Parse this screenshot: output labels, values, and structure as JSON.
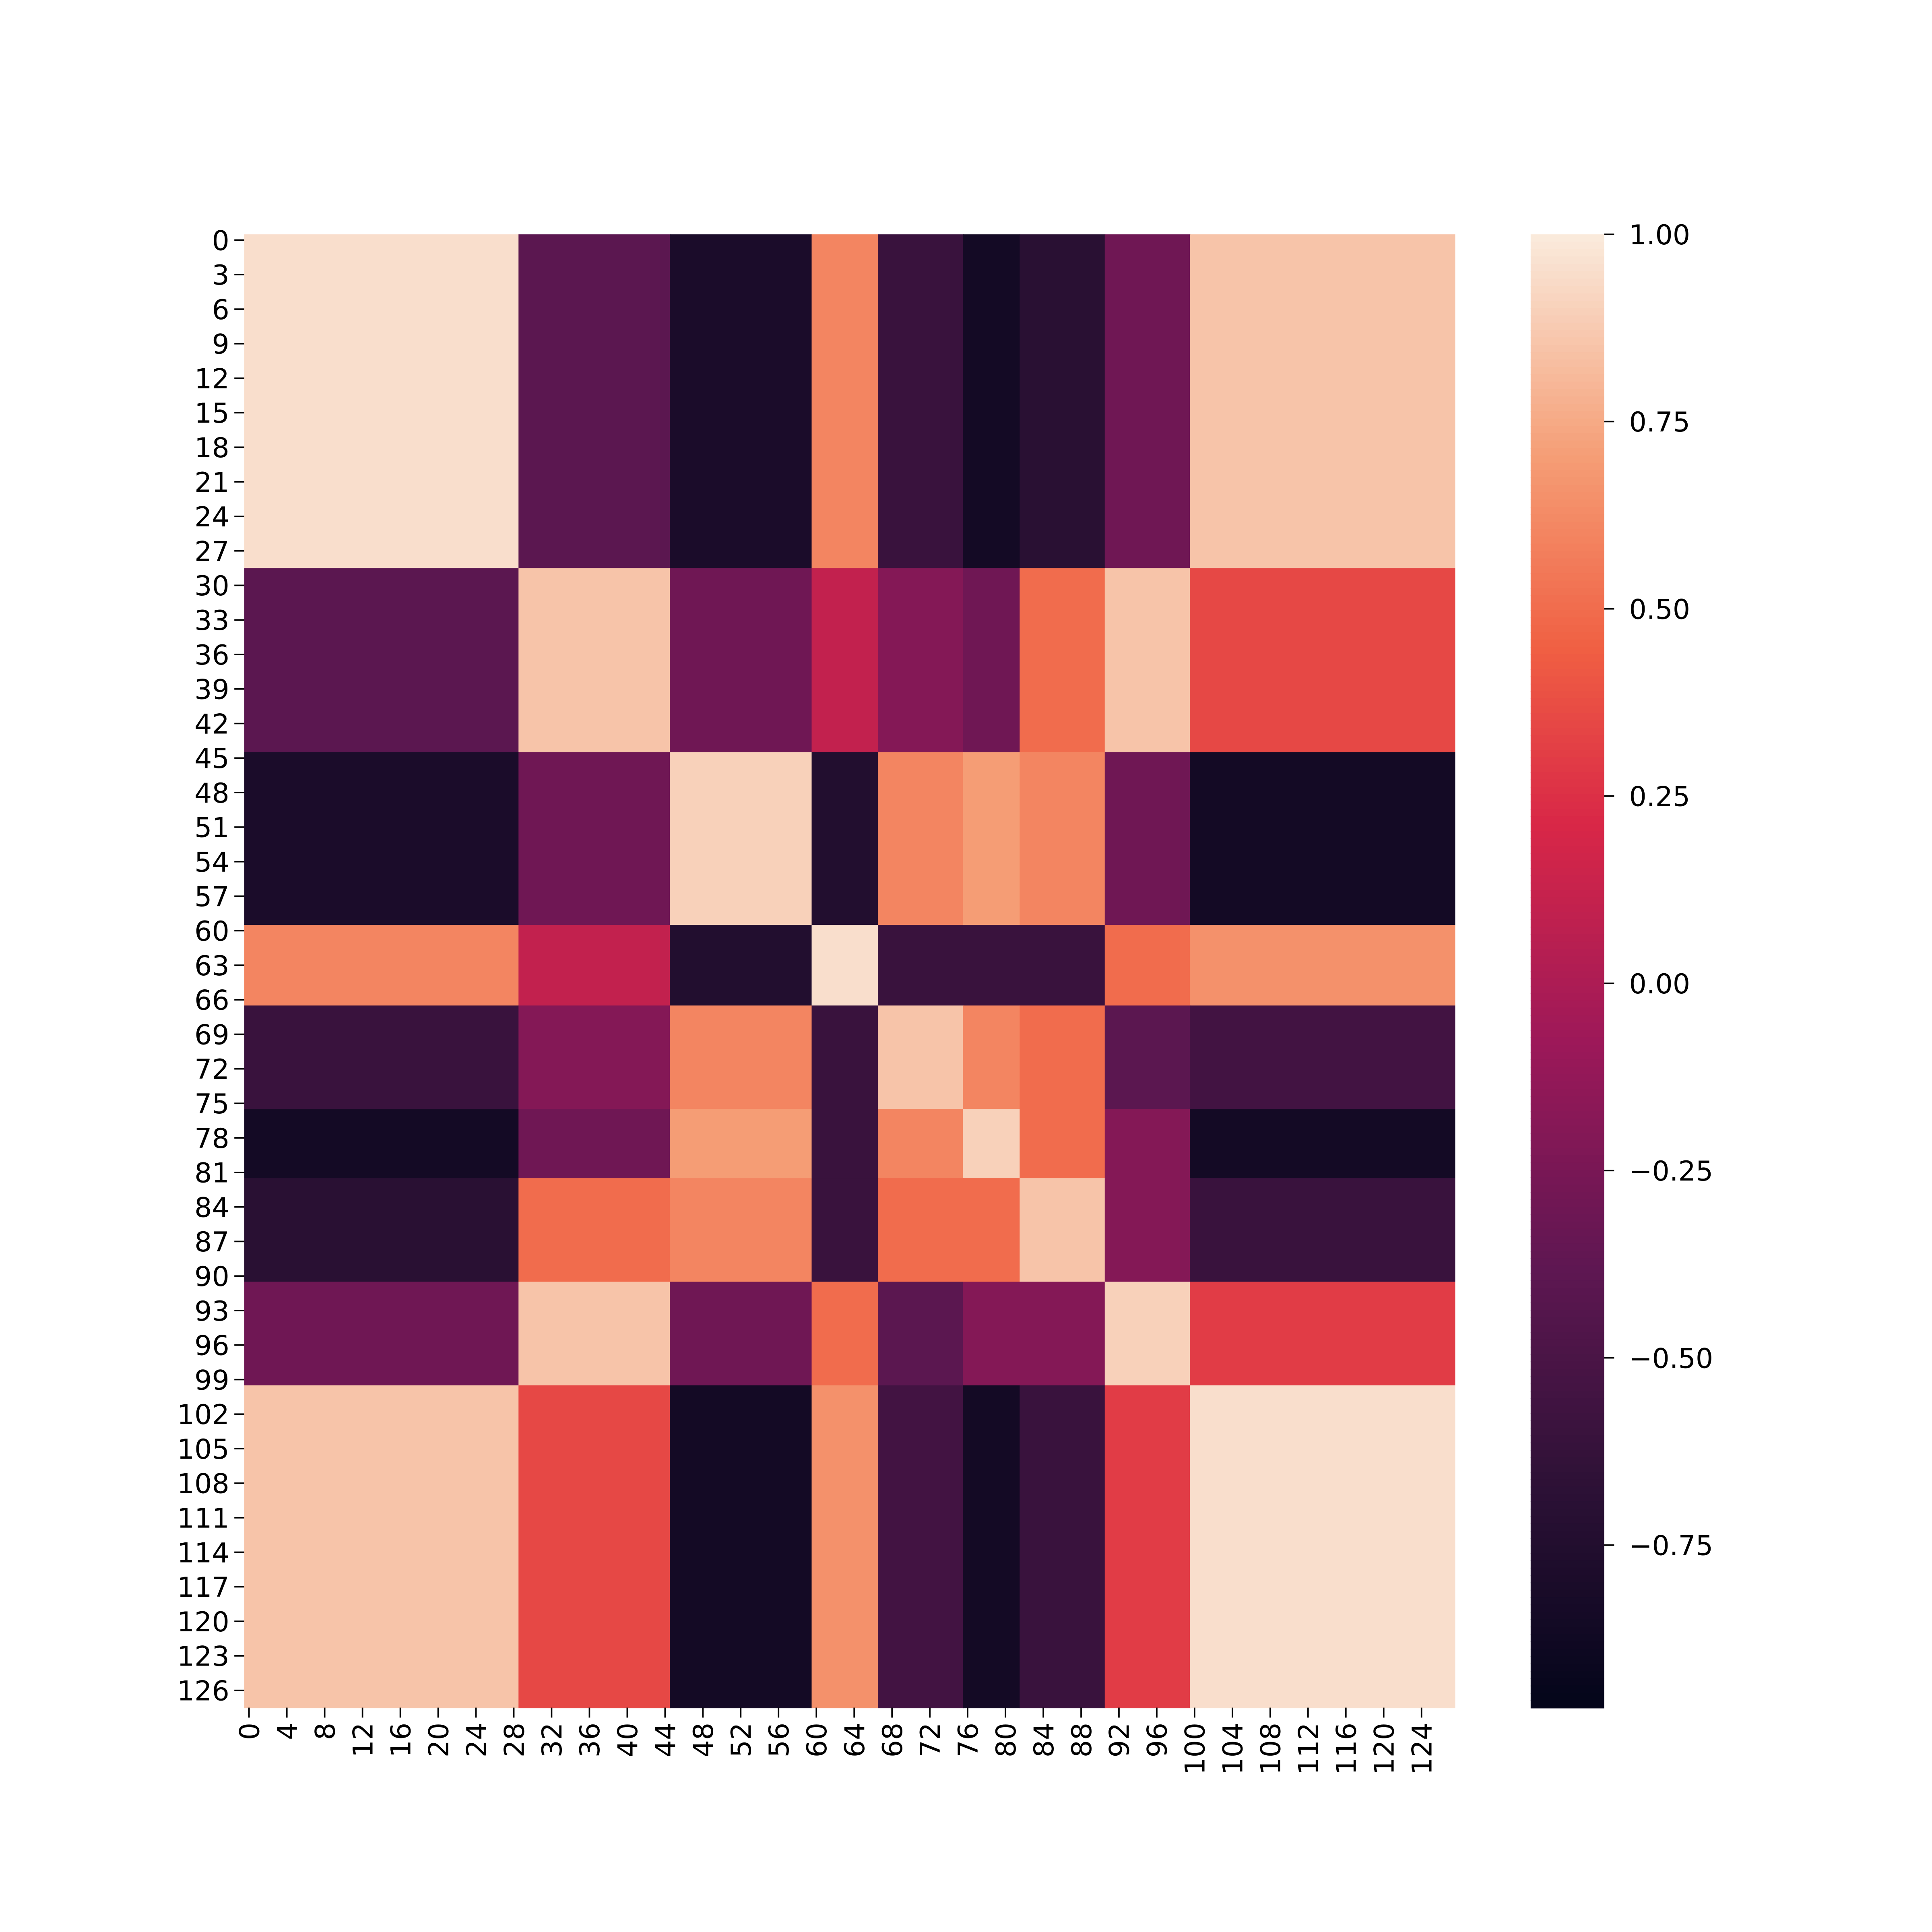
{
  "chart_data": {
    "type": "heatmap",
    "xlim": [
      0,
      128
    ],
    "ylim": [
      0,
      128
    ],
    "xticks": [
      0,
      4,
      8,
      12,
      16,
      20,
      24,
      28,
      32,
      36,
      40,
      44,
      48,
      52,
      56,
      60,
      64,
      68,
      72,
      76,
      80,
      84,
      88,
      92,
      96,
      100,
      104,
      108,
      112,
      116,
      120,
      124
    ],
    "yticks": [
      0,
      3,
      6,
      9,
      12,
      15,
      18,
      21,
      24,
      27,
      30,
      33,
      36,
      39,
      42,
      45,
      48,
      51,
      54,
      57,
      60,
      63,
      66,
      69,
      72,
      75,
      78,
      81,
      84,
      87,
      90,
      93,
      96,
      99,
      102,
      105,
      108,
      111,
      114,
      117,
      120,
      123,
      126
    ],
    "edges": [
      0,
      29,
      45,
      60,
      67,
      76,
      82,
      91,
      100,
      128
    ],
    "values": [
      [
        0.95,
        -0.4,
        -0.8,
        0.6,
        -0.6,
        -0.85,
        -0.7,
        -0.3,
        0.85
      ],
      [
        -0.4,
        0.85,
        -0.3,
        0.1,
        -0.2,
        -0.3,
        0.5,
        0.85,
        0.35
      ],
      [
        -0.8,
        -0.3,
        0.9,
        -0.75,
        0.6,
        0.7,
        0.6,
        -0.3,
        -0.85
      ],
      [
        0.6,
        0.1,
        -0.75,
        0.95,
        -0.6,
        -0.6,
        -0.6,
        0.5,
        0.65
      ],
      [
        -0.6,
        -0.2,
        0.6,
        -0.6,
        0.85,
        0.6,
        0.5,
        -0.4,
        -0.55
      ],
      [
        -0.85,
        -0.3,
        0.7,
        -0.6,
        0.6,
        0.9,
        0.5,
        -0.2,
        -0.85
      ],
      [
        -0.7,
        0.5,
        0.6,
        -0.6,
        0.5,
        0.5,
        0.85,
        -0.2,
        -0.6
      ],
      [
        -0.3,
        0.85,
        -0.3,
        0.5,
        -0.4,
        -0.2,
        -0.2,
        0.9,
        0.3
      ],
      [
        0.85,
        0.35,
        -0.85,
        0.65,
        -0.55,
        -0.85,
        -0.6,
        0.3,
        0.95
      ]
    ],
    "clim": [
      -0.967,
      1
    ],
    "cticks": [
      {
        "value": 1,
        "label": "1.00"
      },
      {
        "value": 0.75,
        "label": "0.75"
      },
      {
        "value": 0.5,
        "label": "0.50"
      },
      {
        "value": 0.25,
        "label": "0.25"
      },
      {
        "value": 0,
        "label": "0.00"
      },
      {
        "value": -0.25,
        "label": "−0.25"
      },
      {
        "value": -0.5,
        "label": "−0.50"
      },
      {
        "value": -0.75,
        "label": "−0.75"
      }
    ],
    "colormap": "rocket"
  }
}
